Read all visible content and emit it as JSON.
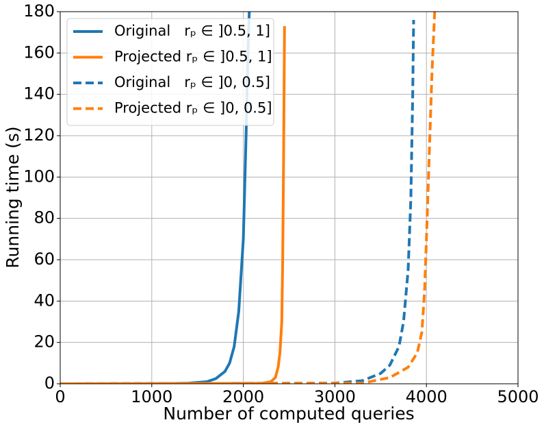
{
  "chart_data": {
    "type": "line",
    "xlabel": "Number of computed queries",
    "ylabel": "Running time (s)",
    "xlim": [
      0,
      5000
    ],
    "ylim": [
      0,
      180
    ],
    "xticks": [
      0,
      1000,
      2000,
      3000,
      4000,
      5000
    ],
    "yticks": [
      0,
      20,
      40,
      60,
      80,
      100,
      120,
      140,
      160,
      180
    ],
    "grid": true,
    "legend": "upper-left",
    "series": [
      {
        "name": "Original   rₚ ∈ ]0.5, 1]",
        "color": "#1f77b4",
        "dash": false,
        "x": [
          0,
          1000,
          1400,
          1600,
          1700,
          1800,
          1850,
          1900,
          1950,
          2000,
          2030,
          2050,
          2065
        ],
        "values": [
          0,
          0,
          0.3,
          1,
          2.5,
          6,
          10,
          18,
          35,
          70,
          120,
          160,
          180
        ]
      },
      {
        "name": "Projected rₚ ∈ ]0.5, 1]",
        "color": "#ff7f0e",
        "dash": false,
        "x": [
          0,
          2200,
          2300,
          2350,
          2380,
          2400,
          2420,
          2430,
          2440,
          2450
        ],
        "values": [
          0,
          0.2,
          1,
          3,
          8,
          15,
          30,
          60,
          110,
          173
        ]
      },
      {
        "name": "Original   rₚ ∈ ]0, 0.5]",
        "color": "#1f77b4",
        "dash": true,
        "x": [
          0,
          3000,
          3300,
          3500,
          3600,
          3700,
          3750,
          3800,
          3830,
          3850,
          3860
        ],
        "values": [
          0,
          0.3,
          1.5,
          5,
          9,
          18,
          30,
          55,
          90,
          140,
          176
        ]
      },
      {
        "name": "Projected rₚ ∈ ]0, 0.5]",
        "color": "#ff7f0e",
        "dash": true,
        "x": [
          0,
          3300,
          3600,
          3800,
          3900,
          3950,
          3980,
          4000,
          4030,
          4060,
          4090
        ],
        "values": [
          0,
          0.3,
          3,
          8,
          15,
          25,
          45,
          70,
          110,
          150,
          180
        ]
      }
    ]
  }
}
